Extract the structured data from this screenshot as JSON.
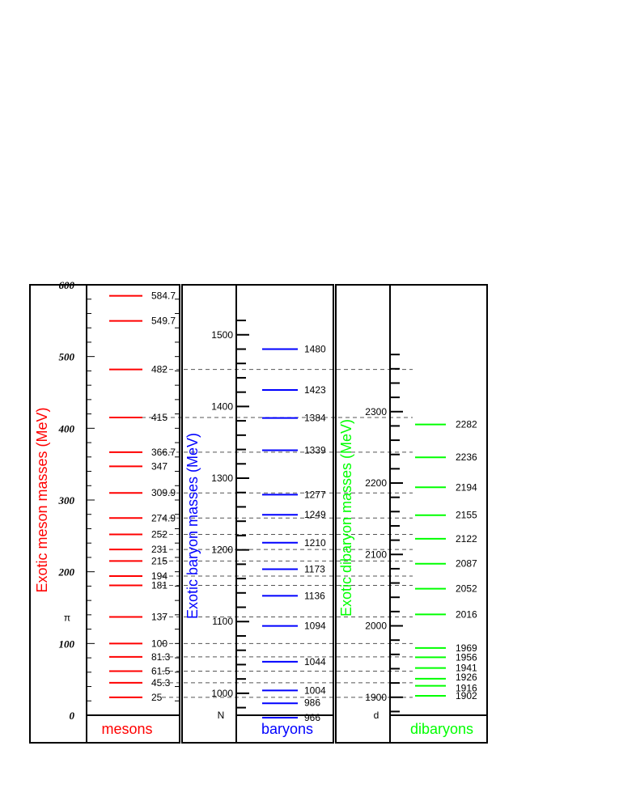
{
  "chart_data": {
    "type": "level-diagram",
    "colors": {
      "mesons": "#ff0000",
      "baryons": "#0000ff",
      "dibaryons": "#00ff00",
      "guide": "#555555"
    },
    "mesons": {
      "ylabel": "Exotic meson masses (MeV)",
      "panel_label": "mesons",
      "ylim": [
        0,
        600
      ],
      "y_ticks": [
        "0",
        "100",
        "200",
        "300",
        "400",
        "500",
        "600"
      ],
      "marker": {
        "label": "π",
        "value": 137
      },
      "levels": [
        {
          "value": 25,
          "label": "25"
        },
        {
          "value": 45.3,
          "label": "45.3"
        },
        {
          "value": 61.5,
          "label": "61.5"
        },
        {
          "value": 81.3,
          "label": "81.3"
        },
        {
          "value": 100,
          "label": "100"
        },
        {
          "value": 137,
          "label": "137"
        },
        {
          "value": 181,
          "label": "181"
        },
        {
          "value": 194,
          "label": "194"
        },
        {
          "value": 215,
          "label": "215"
        },
        {
          "value": 231,
          "label": "231"
        },
        {
          "value": 252,
          "label": "252"
        },
        {
          "value": 274.9,
          "label": "274.9"
        },
        {
          "value": 309.9,
          "label": "309.9"
        },
        {
          "value": 347,
          "label": "347"
        },
        {
          "value": 366.7,
          "label": "366.7"
        },
        {
          "value": 415,
          "label": "415"
        },
        {
          "value": 482,
          "label": "482"
        },
        {
          "value": 549.7,
          "label": "549.7"
        },
        {
          "value": 584.7,
          "label": "584.7"
        }
      ]
    },
    "baryons": {
      "ylabel": "Exotic baryon masses (MeV)",
      "panel_label": "baryons",
      "ylim": [
        939.6,
        1539.6
      ],
      "y_ticks": [
        "1000",
        "1100",
        "1200",
        "1300",
        "1400",
        "1500"
      ],
      "marker": {
        "label": "N",
        "value": 939.6
      },
      "levels": [
        {
          "value": 966,
          "label": "966"
        },
        {
          "value": 986,
          "label": "986"
        },
        {
          "value": 1004,
          "label": "1004"
        },
        {
          "value": 1044,
          "label": "1044"
        },
        {
          "value": 1094,
          "label": "1094"
        },
        {
          "value": 1136,
          "label": "1136"
        },
        {
          "value": 1173,
          "label": "1173"
        },
        {
          "value": 1210,
          "label": "1210"
        },
        {
          "value": 1249,
          "label": "1249"
        },
        {
          "value": 1277,
          "label": "1277"
        },
        {
          "value": 1339,
          "label": "1339"
        },
        {
          "value": 1384,
          "label": "1384"
        },
        {
          "value": 1423,
          "label": "1423"
        },
        {
          "value": 1480,
          "label": "1480"
        }
      ]
    },
    "dibaryons": {
      "ylabel": "Exotic dibaryon masses (MeV)",
      "panel_label": "dibaryons",
      "ylim": [
        1876,
        2376
      ],
      "y_ticks": [
        "1900",
        "2000",
        "2100",
        "2200",
        "2300"
      ],
      "marker": {
        "label": "d",
        "value": 1876
      },
      "levels": [
        {
          "value": 1902,
          "label": "1902"
        },
        {
          "value": 1916,
          "label": "1916"
        },
        {
          "value": 1926,
          "label": "1926"
        },
        {
          "value": 1941,
          "label": "1941"
        },
        {
          "value": 1956,
          "label": "1956"
        },
        {
          "value": 1969,
          "label": "1969"
        },
        {
          "value": 2016,
          "label": "2016"
        },
        {
          "value": 2052,
          "label": "2052"
        },
        {
          "value": 2087,
          "label": "2087"
        },
        {
          "value": 2122,
          "label": "2122"
        },
        {
          "value": 2155,
          "label": "2155"
        },
        {
          "value": 2194,
          "label": "2194"
        },
        {
          "value": 2236,
          "label": "2236"
        },
        {
          "value": 2282,
          "label": "2282"
        }
      ]
    },
    "guide_lines_meson_values": [
      25,
      45.3,
      61.5,
      81.3,
      100,
      137,
      181,
      194,
      215,
      231,
      252,
      274.9,
      309.9,
      366.7,
      415,
      482
    ]
  }
}
